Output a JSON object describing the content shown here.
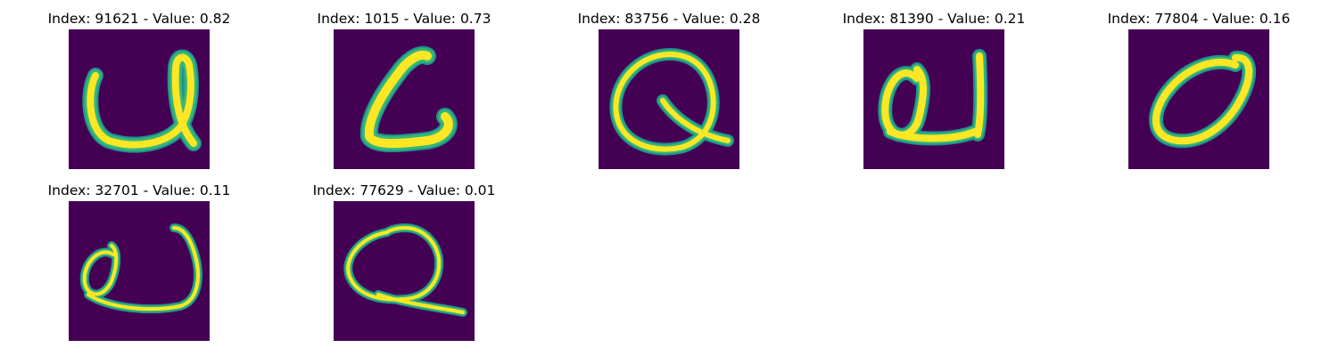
{
  "colors": {
    "background": "#440154",
    "glow": "#35b779",
    "edge": "#21918c",
    "stroke": "#fde725"
  },
  "panels": [
    {
      "title": "Index: 91621 - Value: 0.82"
    },
    {
      "title": "Index: 1015 - Value: 0.73"
    },
    {
      "title": "Index: 83756 - Value: 0.28"
    },
    {
      "title": "Index: 81390 - Value: 0.21"
    },
    {
      "title": "Index: 77804 - Value: 0.16"
    },
    {
      "title": "Index: 32701 - Value: 0.11"
    },
    {
      "title": "Index: 77629 - Value: 0.01"
    }
  ]
}
